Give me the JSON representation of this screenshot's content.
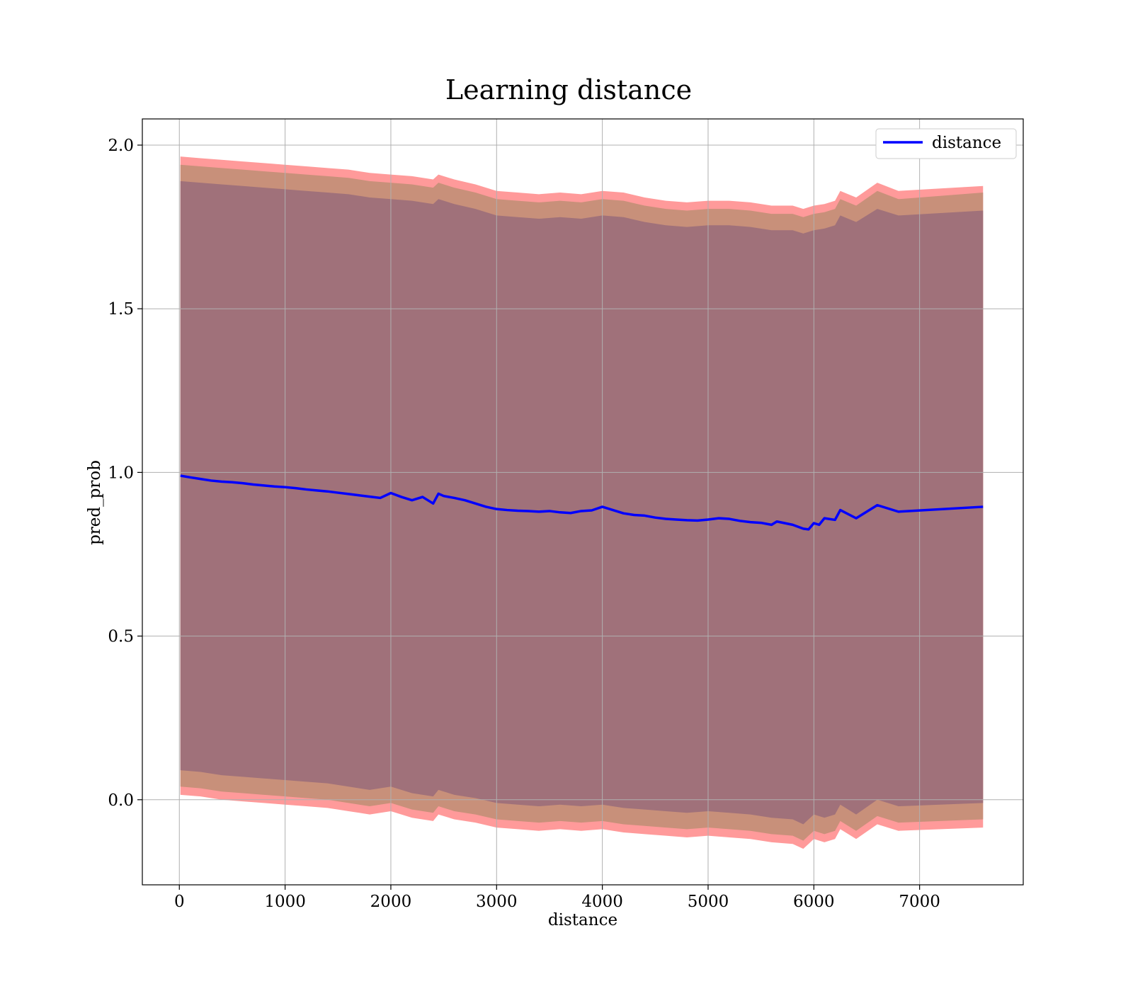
{
  "chart_data": {
    "type": "line",
    "title": "Learning distance",
    "xlabel": "distance",
    "ylabel": "pred_prob",
    "xlim": [
      -350,
      7980
    ],
    "ylim": [
      -0.26,
      2.08
    ],
    "xticks": [
      0,
      1000,
      2000,
      3000,
      4000,
      5000,
      6000,
      7000
    ],
    "xtick_labels": [
      "0",
      "1000",
      "2000",
      "3000",
      "4000",
      "5000",
      "6000",
      "7000"
    ],
    "yticks": [
      0.0,
      0.5,
      1.0,
      1.5,
      2.0
    ],
    "ytick_labels": [
      "0.0",
      "0.5",
      "1.0",
      "1.5",
      "2.0"
    ],
    "grid": true,
    "legend": {
      "placement": "top-right",
      "entries": [
        "distance"
      ]
    },
    "series": [
      {
        "name": "distance",
        "color": "#0000ff",
        "x": [
          10,
          100,
          200,
          300,
          400,
          500,
          600,
          700,
          800,
          900,
          1000,
          1100,
          1200,
          1300,
          1400,
          1500,
          1600,
          1700,
          1800,
          1900,
          2000,
          2100,
          2200,
          2300,
          2400,
          2450,
          2500,
          2600,
          2700,
          2800,
          2900,
          3000,
          3100,
          3200,
          3300,
          3400,
          3500,
          3600,
          3700,
          3800,
          3900,
          4000,
          4100,
          4200,
          4300,
          4400,
          4500,
          4600,
          4700,
          4800,
          4900,
          5000,
          5100,
          5200,
          5300,
          5400,
          5500,
          5600,
          5650,
          5800,
          5900,
          5950,
          6000,
          6050,
          6100,
          6200,
          6250,
          6400,
          6600,
          6800,
          7600
        ],
        "y": [
          0.99,
          0.985,
          0.98,
          0.975,
          0.972,
          0.97,
          0.967,
          0.963,
          0.96,
          0.957,
          0.955,
          0.952,
          0.948,
          0.945,
          0.942,
          0.938,
          0.934,
          0.93,
          0.926,
          0.922,
          0.937,
          0.925,
          0.915,
          0.925,
          0.905,
          0.935,
          0.928,
          0.922,
          0.915,
          0.905,
          0.895,
          0.888,
          0.885,
          0.883,
          0.882,
          0.88,
          0.882,
          0.878,
          0.876,
          0.882,
          0.884,
          0.895,
          0.885,
          0.875,
          0.87,
          0.868,
          0.862,
          0.858,
          0.856,
          0.854,
          0.853,
          0.856,
          0.86,
          0.858,
          0.852,
          0.848,
          0.846,
          0.84,
          0.85,
          0.84,
          0.828,
          0.826,
          0.845,
          0.84,
          0.86,
          0.855,
          0.885,
          0.86,
          0.9,
          0.88,
          0.895
        ]
      }
    ],
    "bands": [
      {
        "name": "outer band",
        "color": "#ff9a9a",
        "x": [
          10,
          200,
          400,
          600,
          800,
          1000,
          1200,
          1400,
          1600,
          1800,
          2000,
          2200,
          2400,
          2450,
          2600,
          2800,
          3000,
          3200,
          3400,
          3600,
          3800,
          4000,
          4200,
          4400,
          4600,
          4800,
          5000,
          5200,
          5400,
          5600,
          5800,
          5900,
          6000,
          6100,
          6200,
          6250,
          6400,
          6600,
          6800,
          7600
        ],
        "upper": [
          1.965,
          1.96,
          1.955,
          1.95,
          1.945,
          1.94,
          1.935,
          1.93,
          1.925,
          1.915,
          1.91,
          1.905,
          1.895,
          1.91,
          1.895,
          1.88,
          1.86,
          1.855,
          1.85,
          1.855,
          1.85,
          1.86,
          1.855,
          1.84,
          1.83,
          1.825,
          1.83,
          1.83,
          1.825,
          1.815,
          1.815,
          1.805,
          1.815,
          1.82,
          1.83,
          1.86,
          1.84,
          1.885,
          1.86,
          1.875
        ],
        "lower": [
          0.015,
          0.01,
          0.0,
          -0.005,
          -0.01,
          -0.015,
          -0.02,
          -0.025,
          -0.035,
          -0.045,
          -0.035,
          -0.055,
          -0.065,
          -0.045,
          -0.06,
          -0.07,
          -0.085,
          -0.09,
          -0.095,
          -0.09,
          -0.095,
          -0.09,
          -0.1,
          -0.105,
          -0.11,
          -0.115,
          -0.11,
          -0.115,
          -0.12,
          -0.13,
          -0.135,
          -0.15,
          -0.12,
          -0.13,
          -0.12,
          -0.09,
          -0.12,
          -0.075,
          -0.095,
          -0.085
        ]
      },
      {
        "name": "middle band",
        "color": "#c8907a",
        "x": [
          10,
          200,
          400,
          600,
          800,
          1000,
          1200,
          1400,
          1600,
          1800,
          2000,
          2200,
          2400,
          2450,
          2600,
          2800,
          3000,
          3200,
          3400,
          3600,
          3800,
          4000,
          4200,
          4400,
          4600,
          4800,
          5000,
          5200,
          5400,
          5600,
          5800,
          5900,
          6000,
          6100,
          6200,
          6250,
          6400,
          6600,
          6800,
          7600
        ],
        "upper": [
          1.94,
          1.935,
          1.93,
          1.925,
          1.92,
          1.915,
          1.91,
          1.905,
          1.9,
          1.89,
          1.885,
          1.88,
          1.87,
          1.885,
          1.87,
          1.855,
          1.835,
          1.83,
          1.825,
          1.83,
          1.825,
          1.835,
          1.83,
          1.815,
          1.805,
          1.8,
          1.805,
          1.805,
          1.8,
          1.79,
          1.79,
          1.78,
          1.79,
          1.795,
          1.805,
          1.835,
          1.815,
          1.86,
          1.835,
          1.855
        ],
        "lower": [
          0.04,
          0.035,
          0.025,
          0.02,
          0.015,
          0.01,
          0.005,
          0.0,
          -0.01,
          -0.02,
          -0.01,
          -0.03,
          -0.04,
          -0.02,
          -0.035,
          -0.045,
          -0.06,
          -0.065,
          -0.07,
          -0.065,
          -0.07,
          -0.065,
          -0.075,
          -0.08,
          -0.085,
          -0.09,
          -0.085,
          -0.09,
          -0.095,
          -0.105,
          -0.11,
          -0.125,
          -0.095,
          -0.105,
          -0.095,
          -0.065,
          -0.095,
          -0.05,
          -0.07,
          -0.06
        ]
      },
      {
        "name": "inner band",
        "color": "#a0717a",
        "x": [
          10,
          200,
          400,
          600,
          800,
          1000,
          1200,
          1400,
          1600,
          1800,
          2000,
          2200,
          2400,
          2450,
          2600,
          2800,
          3000,
          3200,
          3400,
          3600,
          3800,
          4000,
          4200,
          4400,
          4600,
          4800,
          5000,
          5200,
          5400,
          5600,
          5800,
          5900,
          6000,
          6100,
          6200,
          6250,
          6400,
          6600,
          6800,
          7600
        ],
        "upper": [
          1.89,
          1.885,
          1.88,
          1.875,
          1.87,
          1.865,
          1.86,
          1.855,
          1.85,
          1.84,
          1.835,
          1.83,
          1.82,
          1.835,
          1.82,
          1.805,
          1.785,
          1.78,
          1.775,
          1.78,
          1.775,
          1.785,
          1.78,
          1.765,
          1.755,
          1.75,
          1.755,
          1.755,
          1.75,
          1.74,
          1.74,
          1.73,
          1.74,
          1.745,
          1.755,
          1.785,
          1.765,
          1.805,
          1.785,
          1.8
        ],
        "lower": [
          0.09,
          0.085,
          0.075,
          0.07,
          0.065,
          0.06,
          0.055,
          0.05,
          0.04,
          0.03,
          0.04,
          0.02,
          0.01,
          0.03,
          0.015,
          0.005,
          -0.01,
          -0.015,
          -0.02,
          -0.015,
          -0.02,
          -0.015,
          -0.025,
          -0.03,
          -0.035,
          -0.04,
          -0.035,
          -0.04,
          -0.045,
          -0.055,
          -0.06,
          -0.075,
          -0.045,
          -0.055,
          -0.045,
          -0.015,
          -0.045,
          0.0,
          -0.02,
          -0.01
        ]
      }
    ]
  }
}
